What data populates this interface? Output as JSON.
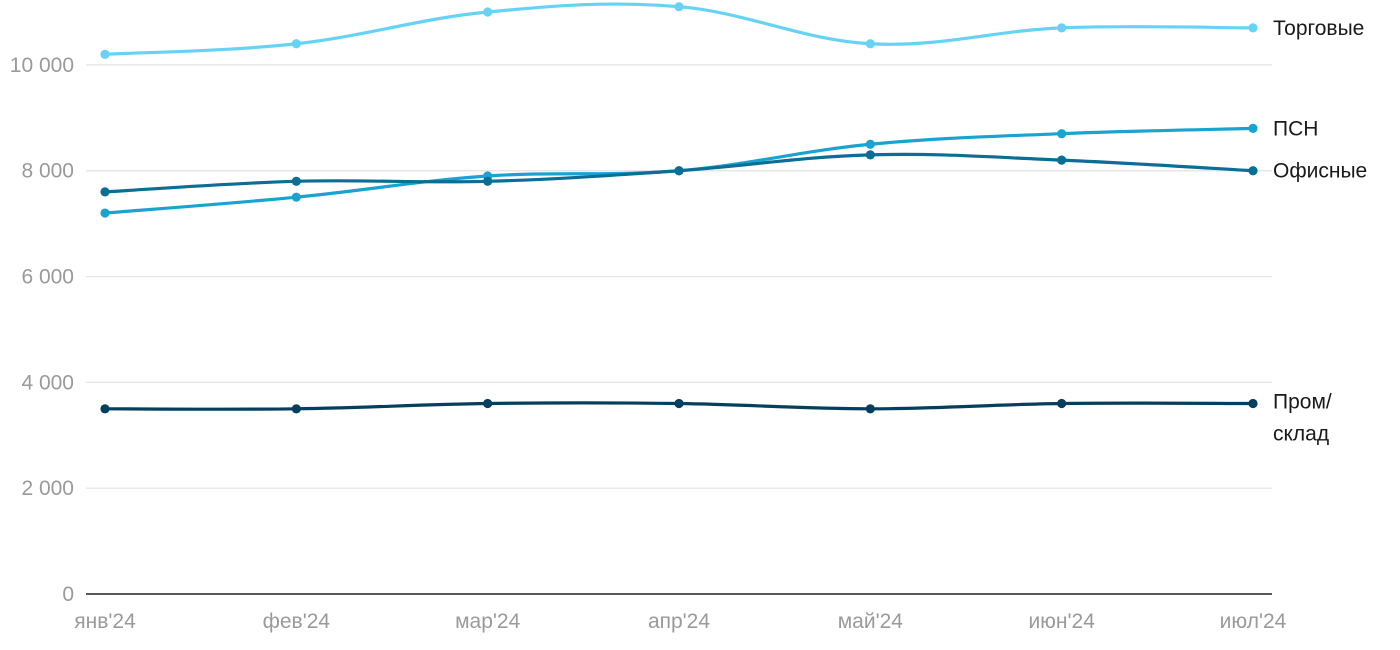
{
  "chart_data": {
    "type": "line",
    "title": "",
    "xlabel": "",
    "ylabel": "",
    "categories": [
      "янв'24",
      "фев'24",
      "мар'24",
      "апр'24",
      "май'24",
      "июн'24",
      "июл'24"
    ],
    "ylim": [
      0,
      11000
    ],
    "yticks": [
      {
        "value": 0,
        "label": "0"
      },
      {
        "value": 2000,
        "label": "2 000"
      },
      {
        "value": 4000,
        "label": "4 000"
      },
      {
        "value": 6000,
        "label": "6 000"
      },
      {
        "value": 8000,
        "label": "8 000"
      },
      {
        "value": 10000,
        "label": "10 000"
      }
    ],
    "grid": true,
    "legend": "inline-right",
    "series": [
      {
        "name": "Торговые",
        "label_lines": [
          "Торговые"
        ],
        "color": "#66d3f5",
        "values": [
          10200,
          10400,
          11000,
          11100,
          10400,
          10700,
          10700
        ]
      },
      {
        "name": "ПСН",
        "label_lines": [
          "ПСН"
        ],
        "color": "#1aa3d1",
        "values": [
          7200,
          7500,
          7900,
          8000,
          8500,
          8700,
          8800
        ]
      },
      {
        "name": "Офисные",
        "label_lines": [
          "Офисные"
        ],
        "color": "#0a6e95",
        "values": [
          7600,
          7800,
          7800,
          8000,
          8300,
          8200,
          8000
        ]
      },
      {
        "name": "Пром/ склад",
        "label_lines": [
          "Пром/",
          "склад"
        ],
        "color": "#053f5e",
        "values": [
          3500,
          3500,
          3600,
          3600,
          3500,
          3600,
          3600
        ]
      }
    ]
  }
}
